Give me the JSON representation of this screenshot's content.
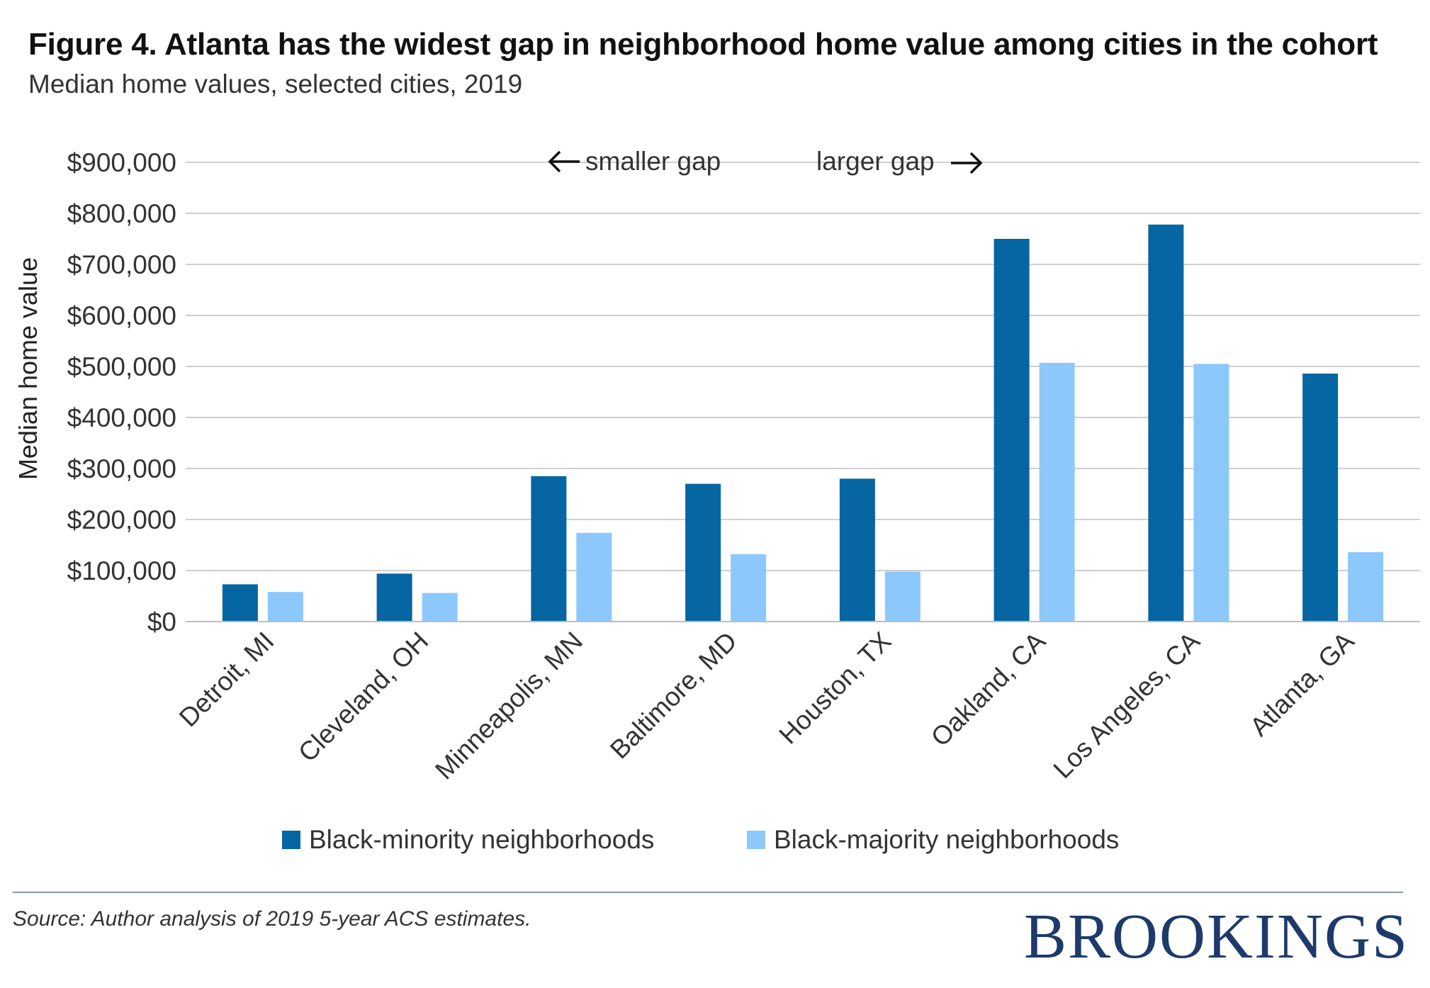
{
  "header": {
    "title": "Figure 4. Atlanta has the widest gap in neighborhood home value among cities in the cohort",
    "subtitle": "Median home values, selected cities, 2019"
  },
  "footer": {
    "source": "Source: Author analysis of 2019 5-year ACS estimates.",
    "brand": "BROOKINGS"
  },
  "colors": {
    "minority": "#0566a2",
    "majority": "#8cc8fc",
    "grid": "#cfcfcf",
    "text": "#333333"
  },
  "chart_data": {
    "type": "bar",
    "title": "Figure 4. Atlanta has the widest gap in neighborhood home value among cities in the cohort",
    "subtitle": "Median home values, selected cities, 2019",
    "xlabel": "",
    "ylabel": "Median home value",
    "ylim": [
      0,
      900000
    ],
    "yticks": [
      0,
      100000,
      200000,
      300000,
      400000,
      500000,
      600000,
      700000,
      800000,
      900000
    ],
    "ytick_labels": [
      "$0",
      "$100,000",
      "$200,000",
      "$300,000",
      "$400,000",
      "$500,000",
      "$600,000",
      "$700,000",
      "$800,000",
      "$900,000"
    ],
    "grid": true,
    "legend_position": "bottom",
    "categories": [
      "Detroit, MI",
      "Cleveland, OH",
      "Minneapolis, MN",
      "Baltimore, MD",
      "Houston, TX",
      "Oakland, CA",
      "Los Angeles, CA",
      "Atlanta, GA"
    ],
    "series": [
      {
        "name": "Black-minority neighborhoods",
        "values": [
          73000,
          94000,
          285000,
          270000,
          280000,
          750000,
          778000,
          486000
        ]
      },
      {
        "name": "Black-majority neighborhoods",
        "values": [
          58000,
          56000,
          174000,
          132000,
          98000,
          507000,
          505000,
          136000
        ]
      }
    ],
    "annotations": {
      "left": "smaller gap",
      "right": "larger gap"
    }
  }
}
